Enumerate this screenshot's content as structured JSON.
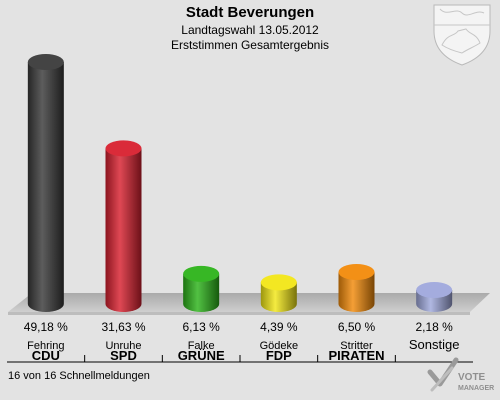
{
  "header": {
    "title": "Stadt Beverungen",
    "subtitle": "Landtagswahl 13.05.2012",
    "subtitle2": "Erststimmen Gesamtergebnis"
  },
  "footer": {
    "reporting": "16 von 16 Schnellmeldungen",
    "brand_line1": "VOTE",
    "brand_line2": "MANAGER"
  },
  "crest": {
    "icon": "nrw-coat-of-arms"
  },
  "chart_data": {
    "type": "bar",
    "categories": [
      "CDU",
      "SPD",
      "GRÜNE",
      "FDP",
      "PIRATEN",
      "Sonstige"
    ],
    "candidates": [
      "Fehring",
      "Unruhe",
      "Falke",
      "Gödeke",
      "Stritter",
      ""
    ],
    "values": [
      49.18,
      31.63,
      6.13,
      4.39,
      6.5,
      2.18
    ],
    "value_labels": [
      "49,18 %",
      "31,63 %",
      "6,13 %",
      "4,39 %",
      "6,50 %",
      "2,18 %"
    ],
    "colors": [
      "#3a3a3a",
      "#d8202f",
      "#2cb31a",
      "#f2e616",
      "#f28a0a",
      "#9fa8dc"
    ],
    "ylim": [
      0,
      50
    ],
    "title": "",
    "xlabel": "",
    "ylabel": "",
    "grid": false,
    "legend": "none"
  }
}
